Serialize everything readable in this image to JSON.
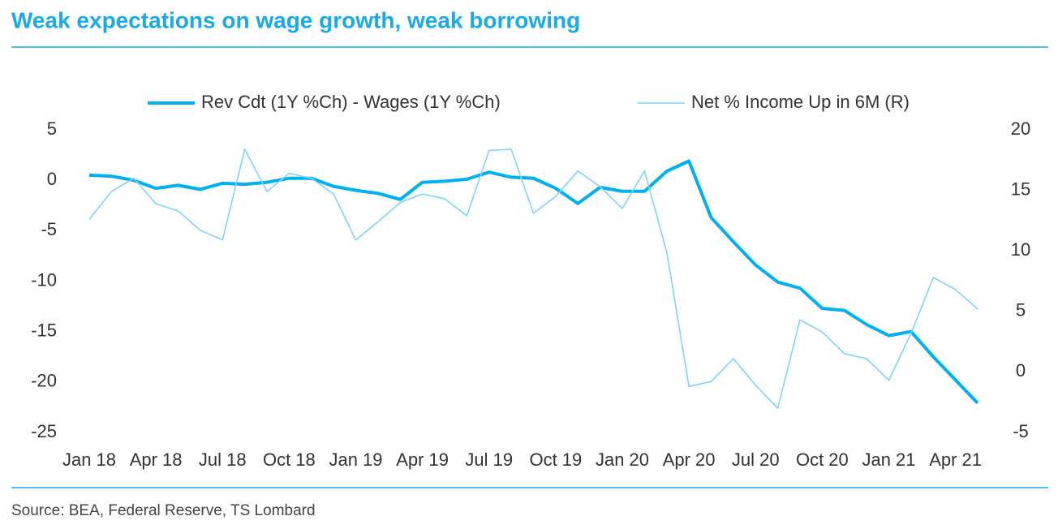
{
  "chart_data": {
    "type": "line",
    "title": "Weak expectations on wage growth, weak borrowing",
    "source": "Source: BEA, Federal Reserve, TS Lombard",
    "categories": [
      "Jan 18",
      null,
      null,
      "Apr 18",
      null,
      null,
      "Jul 18",
      null,
      null,
      "Oct 18",
      null,
      null,
      "Jan 19",
      null,
      null,
      "Apr 19",
      null,
      null,
      "Jul 19",
      null,
      null,
      "Oct 19",
      null,
      null,
      "Jan 20",
      null,
      null,
      "Apr 20",
      null,
      null,
      "Jul 20",
      null,
      null,
      "Oct 20",
      null,
      null,
      "Jan 21",
      null,
      null,
      "Apr 21",
      null
    ],
    "series": [
      {
        "name": "Rev Cdt  (1Y %Ch) - Wages (1Y %Ch)",
        "color": "#00b0f0",
        "width": 4,
        "axis": "y",
        "values": [
          0.5,
          0.4,
          0,
          -0.8,
          -0.5,
          -0.9,
          -0.3,
          -0.4,
          -0.2,
          0.2,
          0.2,
          -0.6,
          -1.0,
          -1.3,
          -1.9,
          -0.2,
          -0.1,
          0.1,
          0.8,
          0.3,
          0.2,
          -0.8,
          -2.3,
          -0.7,
          -1.1,
          -1.1,
          0.9,
          1.9,
          -3.7,
          -6.1,
          -8.4,
          -10.1,
          -10.7,
          -12.7,
          -12.9,
          -14.3,
          -15.4,
          -15.0,
          -17.5,
          -19.8,
          -22.1
        ]
      },
      {
        "name": "Net % Income Up in 6M (R)",
        "color": "#7fd4f5",
        "width": 1.6,
        "axis": "y2",
        "values": [
          12.6,
          14.9,
          16.0,
          13.9,
          13.3,
          11.7,
          10.9,
          18.4,
          14.9,
          16.4,
          16.0,
          14.7,
          10.9,
          12.4,
          14.0,
          14.7,
          14.3,
          12.9,
          18.3,
          18.4,
          13.1,
          14.5,
          16.6,
          15.3,
          13.5,
          16.6,
          9.9,
          -1.2,
          -0.8,
          1.1,
          -1.1,
          -3.0,
          4.3,
          3.3,
          1.5,
          1.1,
          -0.7,
          3.2,
          7.8,
          6.8,
          5.2
        ]
      }
    ],
    "ylim": [
      -25,
      5
    ],
    "yticks": [
      -25,
      -20,
      -15,
      -10,
      -5,
      0,
      5
    ],
    "y2lim": [
      -5,
      20
    ],
    "y2ticks": [
      -5,
      0,
      5,
      10,
      15,
      20
    ],
    "legend": "top",
    "grid": false
  }
}
